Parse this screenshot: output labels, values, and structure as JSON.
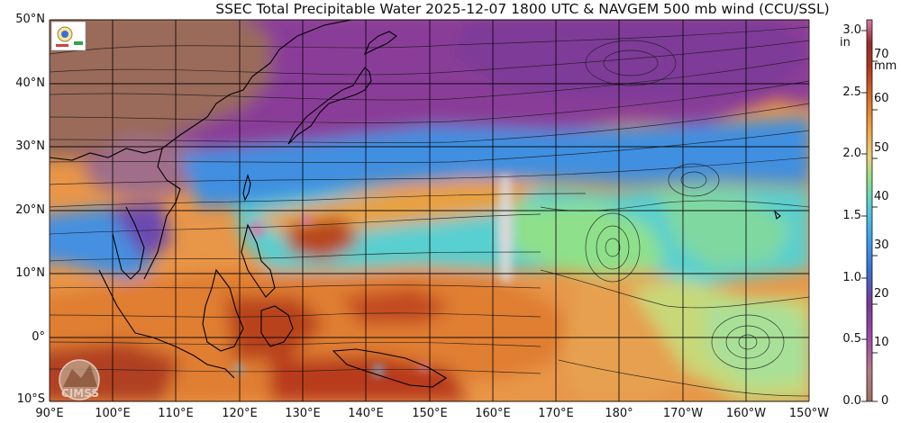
{
  "title": "SSEC Total Precipitable Water  2025-12-07 1800 UTC & NAVGEM 500 mb wind (CCU/SSL)",
  "map": {
    "lat_labels": [
      "50°N",
      "40°N",
      "30°N",
      "20°N",
      "10°N",
      "0°",
      "10°S"
    ],
    "lon_labels": [
      "90°E",
      "100°E",
      "110°E",
      "120°E",
      "130°E",
      "140°E",
      "150°E",
      "160°E",
      "170°E",
      "180°",
      "170°W",
      "160°W",
      "150°W"
    ],
    "lat_range": [
      -10,
      50
    ],
    "lon_range": [
      90,
      210
    ],
    "logo_text": "CIMSS"
  },
  "colorbar": {
    "inch_unit": "in",
    "mm_unit": "mm",
    "inch_ticks": [
      "3.0",
      "2.5",
      "2.0",
      "1.5",
      "1.0",
      "0.5",
      "0.0"
    ],
    "mm_ticks": [
      "70",
      "60",
      "50",
      "40",
      "30",
      "20",
      "10",
      "0"
    ],
    "inch_values": [
      3.0,
      2.5,
      2.0,
      1.5,
      1.0,
      0.5,
      0.0
    ],
    "mm_values": [
      70,
      60,
      50,
      40,
      30,
      20,
      10,
      0
    ],
    "range_mm": [
      0,
      76.2
    ]
  },
  "colors": {
    "dry_brown": "#a0705e",
    "purple": "#8a3e98",
    "magenta": "#7a3896",
    "blue": "#3f8fe0",
    "cyan": "#4fc8e0",
    "green": "#8ee08a",
    "yellow": "#e8d07a",
    "orange": "#e88a38",
    "rust": "#b8461e",
    "pink": "#d87ab0"
  }
}
